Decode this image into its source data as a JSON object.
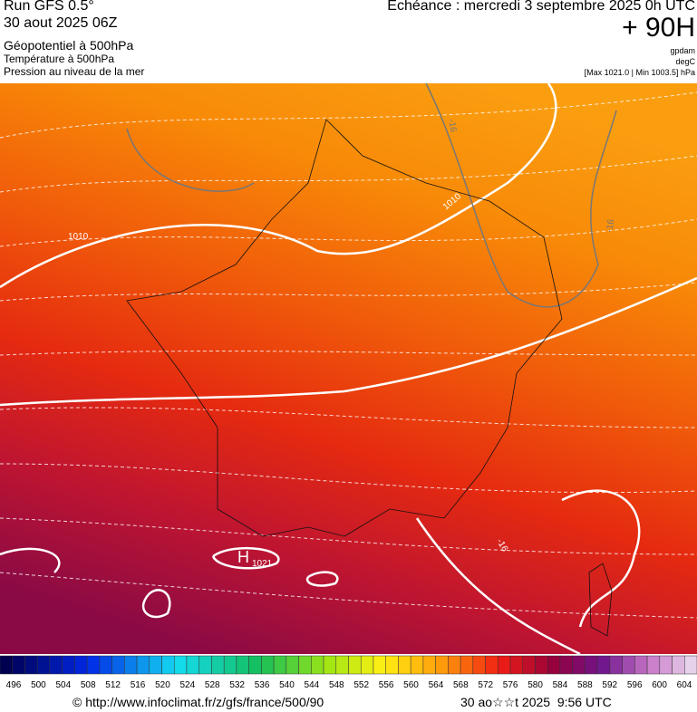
{
  "header": {
    "left": [
      "Run GFS 0.5°",
      "30 aout 2025 06Z",
      "Géopotentiel à 500hPa",
      "Température à 500hPa",
      "Pression au niveau de la mer"
    ],
    "right": {
      "title": "Echéance : mercredi 3 septembre 2025 0h UTC",
      "lead": "+ 90H",
      "units": [
        "gpdam",
        "degC",
        "[Max 1021.0 | Min 1003.5] hPa"
      ]
    }
  },
  "map": {
    "labels": [
      "1010",
      "1010",
      "-16",
      "-16",
      "-16",
      "H",
      "1021"
    ]
  },
  "colorbar": {
    "labels": [
      496,
      500,
      504,
      508,
      512,
      516,
      520,
      524,
      528,
      532,
      536,
      540,
      544,
      548,
      552,
      556,
      560,
      564,
      568,
      572,
      576,
      580,
      584,
      588,
      592,
      596,
      600,
      604
    ]
  },
  "footer": {
    "left": "© http://www.infoclimat.fr/z/gfs/france/500/90",
    "right": "30 ao☆☆t 2025  9:56 UTC"
  }
}
